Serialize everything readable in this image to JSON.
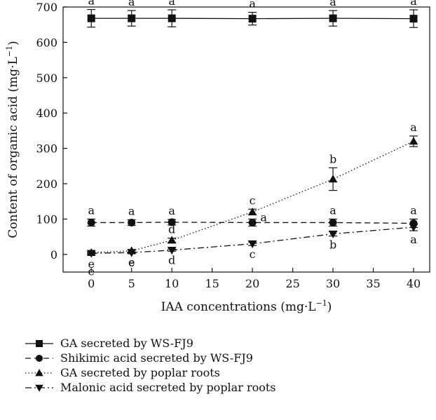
{
  "chart_data": {
    "type": "line",
    "xlabel": "IAA concentrations (mg·L",
    "xlabel_sup": "−1",
    "xlabel_close": ")",
    "ylabel": "Content of organic acid (mg·L",
    "ylabel_sup": "−1",
    "ylabel_close": ")",
    "xlim": [
      -3.5,
      42
    ],
    "ylim": [
      -50,
      700
    ],
    "xticks": [
      0,
      5,
      10,
      15,
      20,
      25,
      30,
      35,
      40
    ],
    "yticks": [
      0,
      100,
      200,
      300,
      400,
      500,
      600,
      700
    ],
    "grid": false,
    "legend_position": "bottom",
    "x": [
      0,
      5,
      10,
      20,
      30,
      40
    ],
    "series": [
      {
        "name": "GA secreted by WS-FJ9",
        "marker": "square",
        "line": "solid",
        "values": [
          668,
          668,
          668,
          667,
          668,
          667
        ],
        "errors": [
          25,
          22,
          24,
          18,
          22,
          25
        ],
        "labels": [
          "a",
          "a",
          "a",
          "a",
          "a",
          "a"
        ]
      },
      {
        "name": "Shikimic acid secreted by WS-FJ9",
        "marker": "circle",
        "line": "dashed",
        "values": [
          90,
          90,
          91,
          90,
          90,
          88
        ],
        "errors": [
          10,
          8,
          8,
          10,
          10,
          12
        ],
        "labels": [
          "a",
          "a",
          "a",
          "a",
          "a",
          "a"
        ]
      },
      {
        "name": "GA secreted by poplar roots",
        "marker": "triangle-up",
        "line": "dotted",
        "values": [
          5,
          10,
          40,
          120,
          213,
          320
        ],
        "errors": [
          3,
          4,
          6,
          8,
          32,
          15
        ],
        "labels": [
          "e",
          "e",
          "d",
          "c",
          "b",
          "a"
        ]
      },
      {
        "name": "Malonic acid secreted by poplar roots",
        "marker": "triangle-down",
        "line": "dashdot",
        "values": [
          3,
          5,
          12,
          30,
          58,
          77
        ],
        "errors": [
          2,
          2,
          3,
          5,
          6,
          10
        ],
        "labels": [
          "e",
          "e",
          "d",
          "c",
          "b",
          "a"
        ]
      }
    ]
  }
}
